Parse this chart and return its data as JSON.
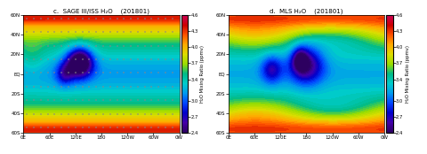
{
  "title_left": "c.  SAGE III/ISS H₂O",
  "title_right": "d.  MLS H₂O",
  "date_label": "(201801)",
  "vmin": 2.4,
  "vmax": 4.6,
  "colorbar_ticks": [
    2.4,
    2.7,
    3.0,
    3.4,
    3.7,
    4.0,
    4.3,
    4.6
  ],
  "colorbar_label": "H₂O Mixing Ratio (ppmv)",
  "lat_ticks": [
    -60,
    -40,
    -20,
    0,
    20,
    40,
    60
  ],
  "lat_labels": [
    "60S",
    "40S",
    "20S",
    "EQ",
    "20N",
    "40N",
    "60N"
  ],
  "lon_ticks": [
    0,
    60,
    120,
    180,
    240,
    300,
    360
  ],
  "lon_labels": [
    "0E",
    "60E",
    "120E",
    "180",
    "120W",
    "60W",
    "0W"
  ],
  "colors_list": [
    "#2d0060",
    "#4400aa",
    "#0000cc",
    "#0044ff",
    "#0099ee",
    "#00cccc",
    "#00bb88",
    "#99dd00",
    "#dddd00",
    "#ffaa00",
    "#ff5500",
    "#cc0000",
    "#cc0055"
  ]
}
